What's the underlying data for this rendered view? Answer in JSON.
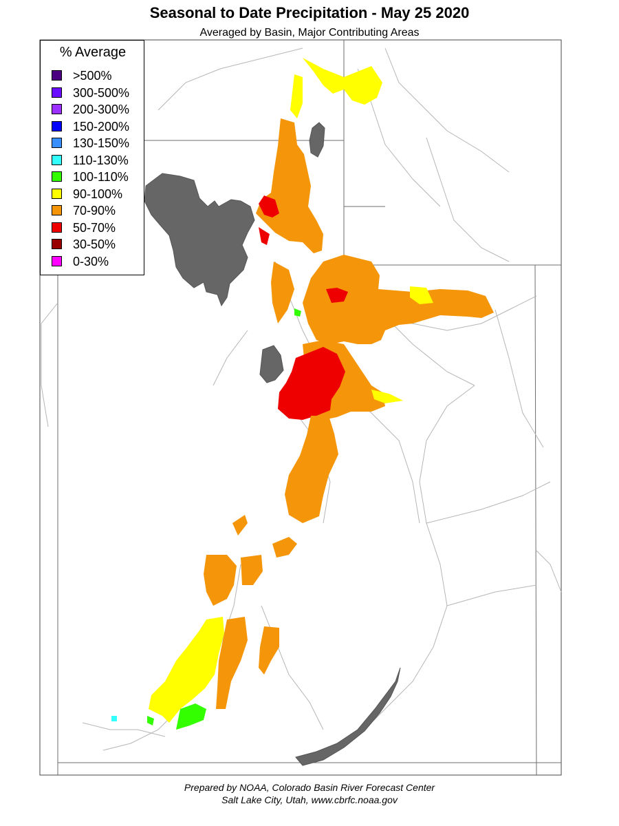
{
  "title": "Seasonal to Date Precipitation - May 25 2020",
  "subtitle": "Averaged by Basin, Major Contributing Areas",
  "legend": {
    "title": "% Average",
    "items": [
      {
        "label": ">500%",
        "color": "#4b0082"
      },
      {
        "label": "300-500%",
        "color": "#6a0dff"
      },
      {
        "label": "200-300%",
        "color": "#9b30ff"
      },
      {
        "label": "150-200%",
        "color": "#0000ff"
      },
      {
        "label": "130-150%",
        "color": "#3a8fff"
      },
      {
        "label": "110-130%",
        "color": "#33ffff"
      },
      {
        "label": "100-110%",
        "color": "#33ff00"
      },
      {
        "label": "90-100%",
        "color": "#ffff00"
      },
      {
        "label": "70-90%",
        "color": "#f5960a"
      },
      {
        "label": "50-70%",
        "color": "#ee0000"
      },
      {
        "label": "30-50%",
        "color": "#990000"
      },
      {
        "label": "0-30%",
        "color": "#ff00ff"
      }
    ]
  },
  "colors": {
    "water": "#666666",
    "rivers": "#b4b4b4",
    "border": "#555555"
  },
  "footer": {
    "line1": "Prepared by NOAA, Colorado Basin River Forecast Center",
    "line2": "Salt Lake City, Utah, www.cbrfc.noaa.gov"
  }
}
